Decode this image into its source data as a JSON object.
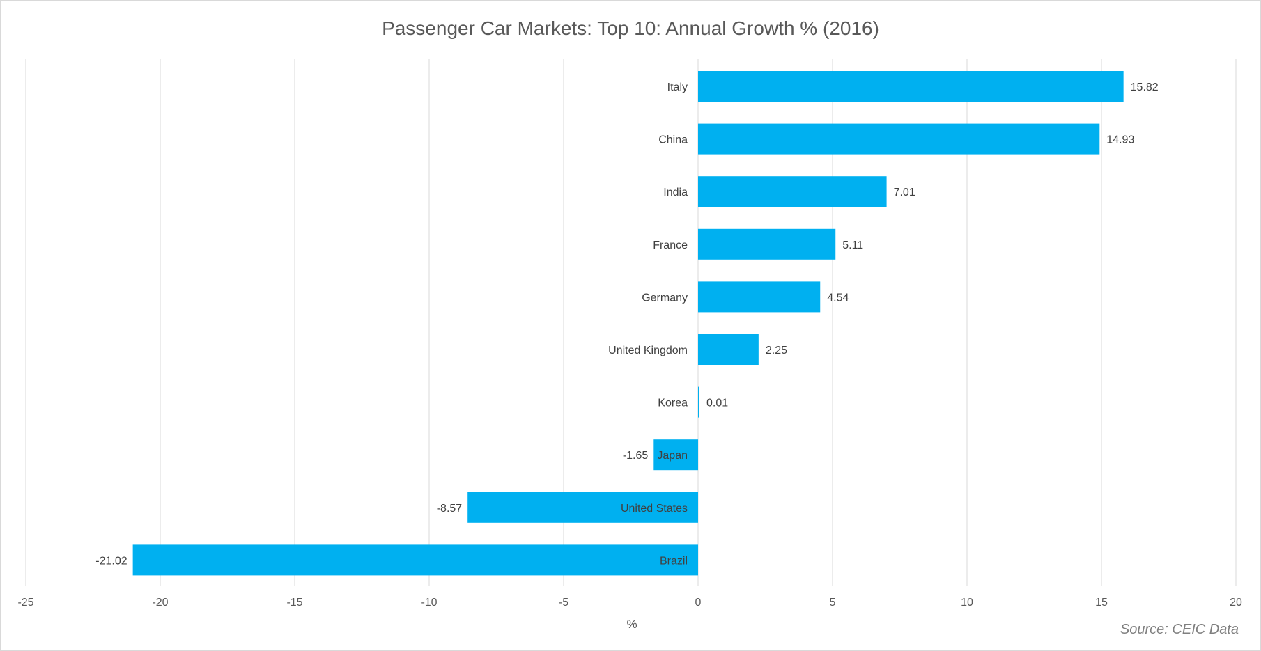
{
  "chart_data": {
    "type": "bar",
    "orientation": "horizontal",
    "title": "Passenger Car Markets: Top 10: Annual Growth % (2016)",
    "xlabel": "%",
    "ylabel": "",
    "xlim": [
      -25,
      20
    ],
    "xticks": [
      -25,
      -20,
      -15,
      -10,
      -5,
      0,
      5,
      10,
      15,
      20
    ],
    "grid": true,
    "legend": "none",
    "categories": [
      "Italy",
      "China",
      "India",
      "France",
      "Germany",
      "United Kingdom",
      "Korea",
      "Japan",
      "United States",
      "Brazil"
    ],
    "values": [
      15.82,
      14.93,
      7.01,
      5.11,
      4.54,
      2.25,
      0.01,
      -1.65,
      -8.57,
      -21.02
    ],
    "value_labels": [
      "15.82",
      "14.93",
      "7.01",
      "5.11",
      "4.54",
      "2.25",
      "0.01",
      "-1.65",
      "-8.57",
      "-21.02"
    ],
    "tick_labels": [
      "-25",
      "-20",
      "-15",
      "-10",
      "-5",
      "0",
      "5",
      "10",
      "15",
      "20"
    ],
    "bar_color": "#00b0f0",
    "source": "Source: CEIC Data"
  }
}
